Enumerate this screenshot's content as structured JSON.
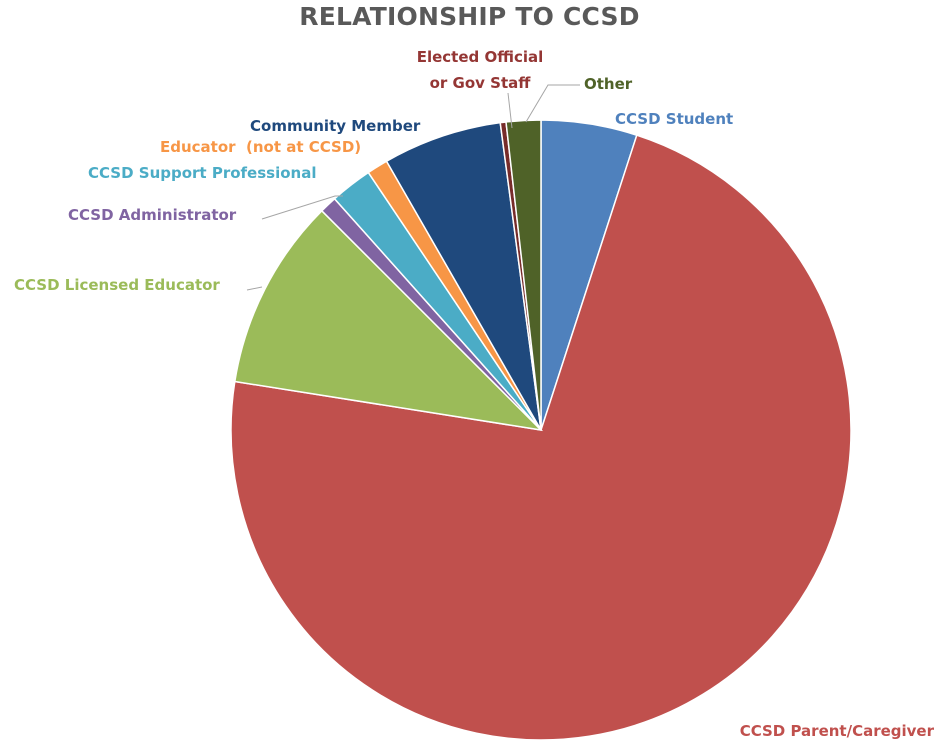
{
  "chart_data": {
    "type": "pie",
    "title": "RELATIONSHIP TO CCSD",
    "slices": [
      {
        "label": "CCSD Student",
        "value": 5.0,
        "color": "#4F81BD"
      },
      {
        "label": "CCSD Parent/Caregiver",
        "value": 72.5,
        "color": "#C0504D"
      },
      {
        "label": "CCSD Licensed Educator",
        "value": 10.0,
        "color": "#9BBB59"
      },
      {
        "label": "CCSD Administrator",
        "value": 0.9,
        "color": "#8064A2"
      },
      {
        "label": "CCSD Support Professional",
        "value": 2.2,
        "color": "#4BACC6"
      },
      {
        "label": "Educator  (not at CCSD)",
        "value": 1.1,
        "color": "#F79646"
      },
      {
        "label": "Community Member",
        "value": 6.2,
        "color": "#1F497D"
      },
      {
        "label": "Elected Official\nor Gov Staff",
        "value": 0.3,
        "color": "#772C2A"
      },
      {
        "label": "Other",
        "value": 1.8,
        "color": "#4F6228"
      }
    ],
    "label_colors": {
      "CCSD Student": "#4F81BD",
      "CCSD Parent/Caregiver": "#C0504D",
      "CCSD Licensed Educator": "#9BBB59",
      "CCSD Administrator": "#8064A2",
      "CCSD Support Professional": "#4BACC6",
      "Educator  (not at CCSD)": "#F79646",
      "Community Member": "#1F497D",
      "Elected Official\nor Gov Staff": "#943634",
      "Other": "#4F6228"
    },
    "start_angle_deg": 0,
    "direction": "clockwise",
    "legend": "none, data labels outside slices with leader lines"
  }
}
